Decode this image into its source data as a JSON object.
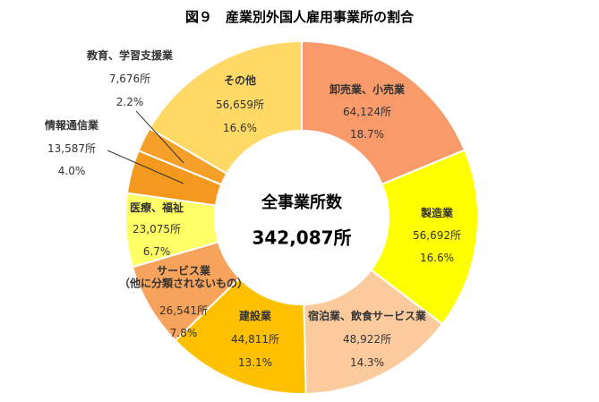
{
  "chart_data": {
    "type": "donut",
    "title": "図９　産業別外国人雇用事業所の割合",
    "categories": [
      "卸売業、小売業",
      "製造業",
      "宿泊業、飲食サービス業",
      "建設業",
      "サービス業\n（他に分類されないもの）",
      "医療、福祉",
      "情報通信業",
      "教育、学習支援業",
      "その他"
    ],
    "counts": [
      64124,
      56692,
      48922,
      44811,
      26541,
      23075,
      13587,
      7676,
      56659
    ],
    "count_labels": [
      "64,124所",
      "56,692所",
      "48,922所",
      "44,811所",
      "26,541所",
      "23,075所",
      "13,587所",
      "7,676所",
      "56,659所"
    ],
    "values": [
      18.7,
      16.6,
      14.3,
      13.1,
      7.8,
      6.7,
      4.0,
      2.2,
      16.6
    ],
    "value_labels": [
      "18.7%",
      "16.6%",
      "14.3%",
      "13.1%",
      "7.8%",
      "6.7%",
      "4.0%",
      "2.2%",
      "16.6%"
    ],
    "colors": [
      "#f89a6a",
      "#ffff00",
      "#fbcb9e",
      "#ffc000",
      "#f7a35c",
      "#ffff66",
      "#f39a1e",
      "#f5a028",
      "#ffd966"
    ],
    "center_label": "全事業所数",
    "total": 342087,
    "total_label": "342,087所"
  }
}
